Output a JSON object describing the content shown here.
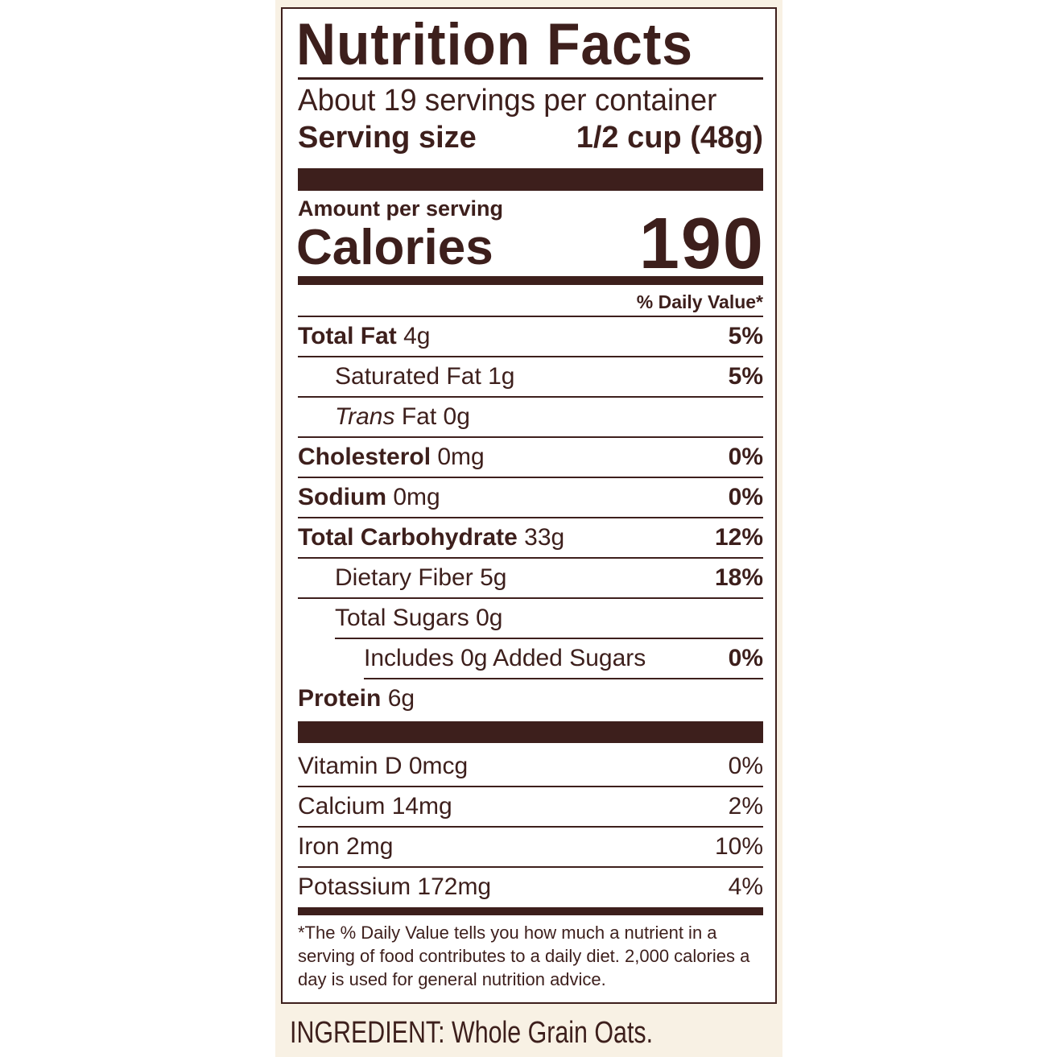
{
  "label": {
    "title": "Nutrition Facts",
    "servings_per_container": "About 19 servings per container",
    "serving_size_label": "Serving size",
    "serving_size_value": "1/2 cup (48g)",
    "amount_per_serving": "Amount per serving",
    "calories_label": "Calories",
    "calories_value": "190",
    "daily_value_header": "% Daily Value*",
    "nutrients": [
      {
        "name": "Total Fat",
        "amount": "4g",
        "dv": "5%"
      },
      {
        "name": "Saturated Fat",
        "amount": "1g",
        "dv": "5%"
      },
      {
        "name": "Trans",
        "name_rest": "Fat",
        "amount": "0g",
        "dv": ""
      },
      {
        "name": "Cholesterol",
        "amount": "0mg",
        "dv": "0%"
      },
      {
        "name": "Sodium",
        "amount": "0mg",
        "dv": "0%"
      },
      {
        "name": "Total Carbohydrate",
        "amount": "33g",
        "dv": "12%"
      },
      {
        "name": "Dietary Fiber",
        "amount": "5g",
        "dv": "18%"
      },
      {
        "name": "Total Sugars",
        "amount": "0g",
        "dv": ""
      },
      {
        "name": "Includes 0g Added Sugars",
        "amount": "",
        "dv": "0%"
      },
      {
        "name": "Protein",
        "amount": "6g",
        "dv": ""
      }
    ],
    "vitamins": [
      {
        "name": "Vitamin D 0mcg",
        "dv": "0%"
      },
      {
        "name": "Calcium 14mg",
        "dv": "2%"
      },
      {
        "name": "Iron 2mg",
        "dv": "10%"
      },
      {
        "name": "Potassium 172mg",
        "dv": "4%"
      }
    ],
    "footnote": "*The % Daily Value tells you how much a nutrient in a serving of food contributes to a daily diet. 2,000 calories a day is used for general nutrition advice."
  },
  "ingredients": "INGREDIENT: Whole Grain Oats.",
  "colors": {
    "text": "#3d1f1c",
    "panel": "#f8f1e4"
  }
}
